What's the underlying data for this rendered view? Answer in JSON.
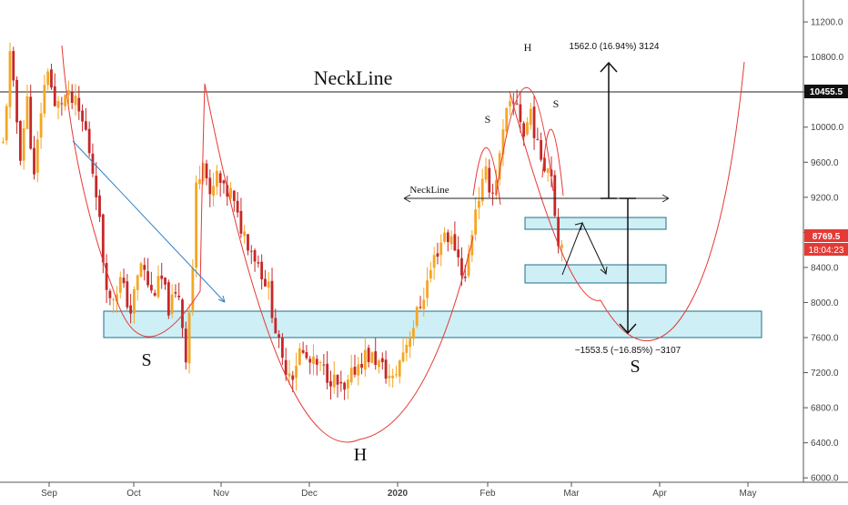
{
  "chart_data": {
    "type": "candlestick",
    "x_ticks": [
      "Sep",
      "Oct",
      "Nov",
      "Dec",
      "2020",
      "Feb",
      "Mar",
      "Apr",
      "May"
    ],
    "y_ticks": [
      11200,
      10800,
      10400,
      10000,
      9600,
      9200,
      8800,
      8400,
      8000,
      7600,
      7200,
      6800,
      6400,
      6000
    ],
    "y_tick_labels": [
      "11200.0",
      "10800.0",
      "",
      "10000.0",
      "9600.0",
      "9200.0",
      "8800.0",
      "8400.0",
      "8000.0",
      "7600.0",
      "7200.0",
      "6800.0",
      "6400.0",
      "6000.0"
    ],
    "ylim": [
      5950,
      11450
    ],
    "price_path": [
      [
        0,
        9800
      ],
      [
        2,
        10800
      ],
      [
        5,
        9700
      ],
      [
        7,
        10300
      ],
      [
        9,
        9400
      ],
      [
        11,
        10200
      ],
      [
        13,
        10700
      ],
      [
        15,
        10200
      ],
      [
        18,
        10350
      ],
      [
        21,
        10250
      ],
      [
        24,
        9950
      ],
      [
        27,
        9300
      ],
      [
        29,
        8500
      ],
      [
        31,
        8000
      ],
      [
        34,
        8250
      ],
      [
        37,
        7900
      ],
      [
        40,
        8450
      ],
      [
        43,
        8100
      ],
      [
        46,
        8250
      ],
      [
        48,
        7950
      ],
      [
        51,
        8100
      ],
      [
        53,
        7400
      ],
      [
        55,
        8400
      ],
      [
        56,
        9300
      ],
      [
        58,
        9700
      ],
      [
        60,
        9150
      ],
      [
        62,
        9450
      ],
      [
        64,
        9250
      ],
      [
        66,
        9250
      ],
      [
        68,
        8950
      ],
      [
        71,
        8700
      ],
      [
        74,
        8450
      ],
      [
        77,
        8150
      ],
      [
        79,
        7700
      ],
      [
        81,
        7300
      ],
      [
        84,
        7200
      ],
      [
        86,
        7450
      ],
      [
        89,
        7300
      ],
      [
        92,
        7250
      ],
      [
        95,
        7150
      ],
      [
        97,
        7050
      ],
      [
        99,
        6950
      ],
      [
        102,
        7250
      ],
      [
        105,
        7400
      ],
      [
        108,
        7350
      ],
      [
        110,
        7250
      ],
      [
        113,
        7100
      ],
      [
        116,
        7450
      ],
      [
        119,
        7750
      ],
      [
        122,
        8100
      ],
      [
        125,
        8500
      ],
      [
        128,
        8800
      ],
      [
        131,
        8650
      ],
      [
        134,
        8250
      ],
      [
        137,
        9100
      ],
      [
        140,
        9450
      ],
      [
        142,
        9250
      ],
      [
        144,
        9650
      ],
      [
        146,
        10150
      ],
      [
        149,
        10300
      ],
      [
        151,
        9900
      ],
      [
        153,
        10200
      ],
      [
        155,
        9750
      ],
      [
        157,
        9600
      ],
      [
        159,
        9500
      ],
      [
        161,
        8650
      ],
      [
        162,
        8770
      ]
    ],
    "neckline_value": 10455.5,
    "price_label": "10455.5",
    "current_price": "8769.5",
    "countdown": "18:04:23",
    "colors": {
      "up": "#f5a623",
      "down": "#c62828",
      "curve": "#e53935",
      "zone_fill": "#cdeff5",
      "zone_stroke": "#1f6f86",
      "trend": "#2f80c9"
    },
    "annotations": {
      "neckline_big": "NeckLine",
      "neckline_small": "NeckLine",
      "label_s_left": "S",
      "label_h_bottom": "H",
      "label_s_right_big": "S",
      "label_s_small_left": "S",
      "label_h_small": "H",
      "label_s_small_right": "S",
      "measure_up": "1562.0 (16.94%) 3124",
      "measure_down": "−1553.5 (−16.85%) −3107"
    }
  }
}
